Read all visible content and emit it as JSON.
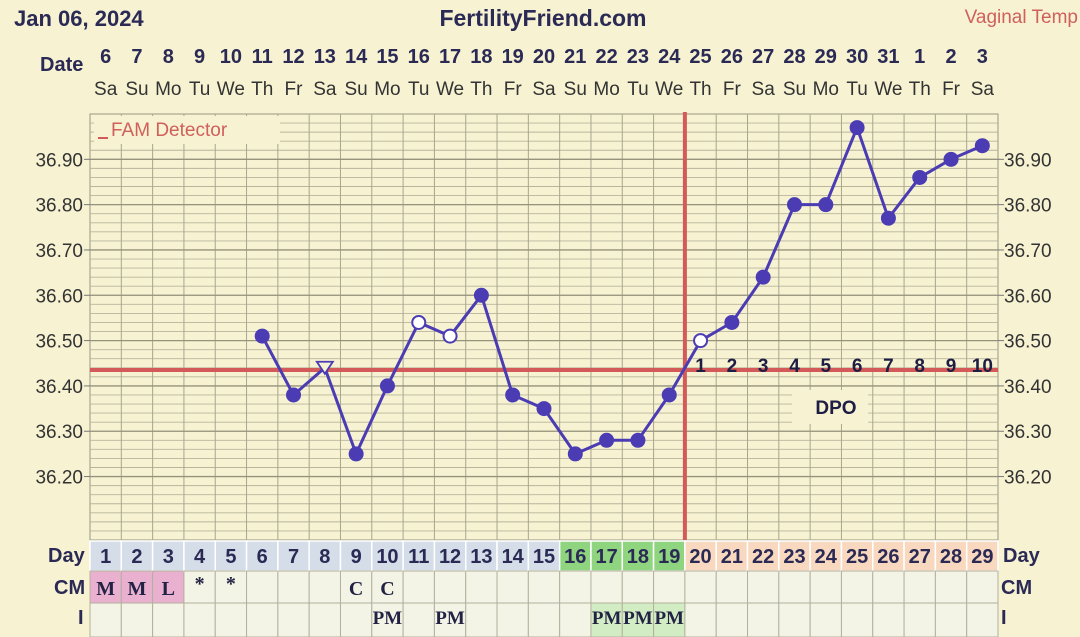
{
  "header": {
    "date": "Jan 06, 2024",
    "site": "FertilityFriend.com",
    "temp_label": "Vaginal Temp"
  },
  "labels": {
    "date_row": "Date",
    "day_row": "Day",
    "cm_row": "CM",
    "i_row": "I",
    "fam_detector": "FAM Detector",
    "dpo": "DPO"
  },
  "colors": {
    "background": "#f6f2d2",
    "line": "#4b3cb4",
    "coverline": "#d45a5a",
    "green_days": "#8fd47f",
    "peach_days": "#f9d8c0",
    "pink_cm": "#eab0cf"
  },
  "chart_data": {
    "type": "line",
    "title": "FertilityFriend.com",
    "dates": [
      "6",
      "7",
      "8",
      "9",
      "10",
      "11",
      "12",
      "13",
      "14",
      "15",
      "16",
      "17",
      "18",
      "19",
      "20",
      "21",
      "22",
      "23",
      "24",
      "25",
      "26",
      "27",
      "28",
      "29",
      "30",
      "31",
      "1",
      "2",
      "3"
    ],
    "weekdays": [
      "Sa",
      "Su",
      "Mo",
      "Tu",
      "We",
      "Th",
      "Fr",
      "Sa",
      "Su",
      "Mo",
      "Tu",
      "We",
      "Th",
      "Fr",
      "Sa",
      "Su",
      "Mo",
      "Tu",
      "We",
      "Th",
      "Fr",
      "Sa",
      "Su",
      "Mo",
      "Tu",
      "We",
      "Th",
      "Fr",
      "Sa"
    ],
    "cycle_days": [
      "1",
      "2",
      "3",
      "4",
      "5",
      "6",
      "7",
      "8",
      "9",
      "10",
      "11",
      "12",
      "13",
      "14",
      "15",
      "16",
      "17",
      "18",
      "19",
      "20",
      "21",
      "22",
      "23",
      "24",
      "25",
      "26",
      "27",
      "28",
      "29"
    ],
    "series": [
      {
        "values": [
          null,
          null,
          null,
          null,
          null,
          36.51,
          36.38,
          36.44,
          36.25,
          36.4,
          36.54,
          36.51,
          36.6,
          36.38,
          36.35,
          36.25,
          36.28,
          36.28,
          36.38,
          36.5,
          36.54,
          36.64,
          36.8,
          36.8,
          36.97,
          36.77,
          36.86,
          36.9,
          36.93
        ],
        "markers": [
          "",
          "",
          "",
          "",
          "",
          "dot",
          "dot",
          "triangle",
          "dot",
          "dot",
          "open",
          "open",
          "dot",
          "dot",
          "dot",
          "dot",
          "dot",
          "dot",
          "dot",
          "open",
          "dot",
          "dot",
          "dot",
          "dot",
          "dot",
          "dot",
          "dot",
          "dot",
          "dot"
        ]
      }
    ],
    "y_ticks": [
      "36.20",
      "36.30",
      "36.40",
      "36.50",
      "36.60",
      "36.70",
      "36.80",
      "36.90"
    ],
    "ylim": [
      36.06,
      37.0
    ],
    "coverline": 36.435,
    "ovulation_day_index": 18,
    "dpo": [
      "1",
      "2",
      "3",
      "4",
      "5",
      "6",
      "7",
      "8",
      "9",
      "10"
    ],
    "dpo_start_index": 19,
    "cm": [
      "M",
      "M",
      "L",
      "*",
      "*",
      "",
      "",
      "",
      "C",
      "C",
      "",
      "",
      "",
      "",
      "",
      "",
      "",
      "",
      "",
      "",
      "",
      "",
      "",
      "",
      "",
      "",
      "",
      "",
      ""
    ],
    "intercourse": [
      "",
      "",
      "",
      "",
      "",
      "",
      "",
      "",
      "",
      "PM",
      "",
      "PM",
      "",
      "",
      "",
      "",
      "PM",
      "PM",
      "PM",
      "",
      "",
      "",
      "",
      "",
      "",
      "",
      "",
      "",
      ""
    ],
    "green_day_indices": [
      15,
      16,
      17,
      18
    ],
    "peach_day_indices": [
      19,
      20,
      21,
      22,
      23,
      24,
      25,
      26,
      27,
      28
    ],
    "pink_day_indices": [
      0,
      1,
      2
    ]
  }
}
